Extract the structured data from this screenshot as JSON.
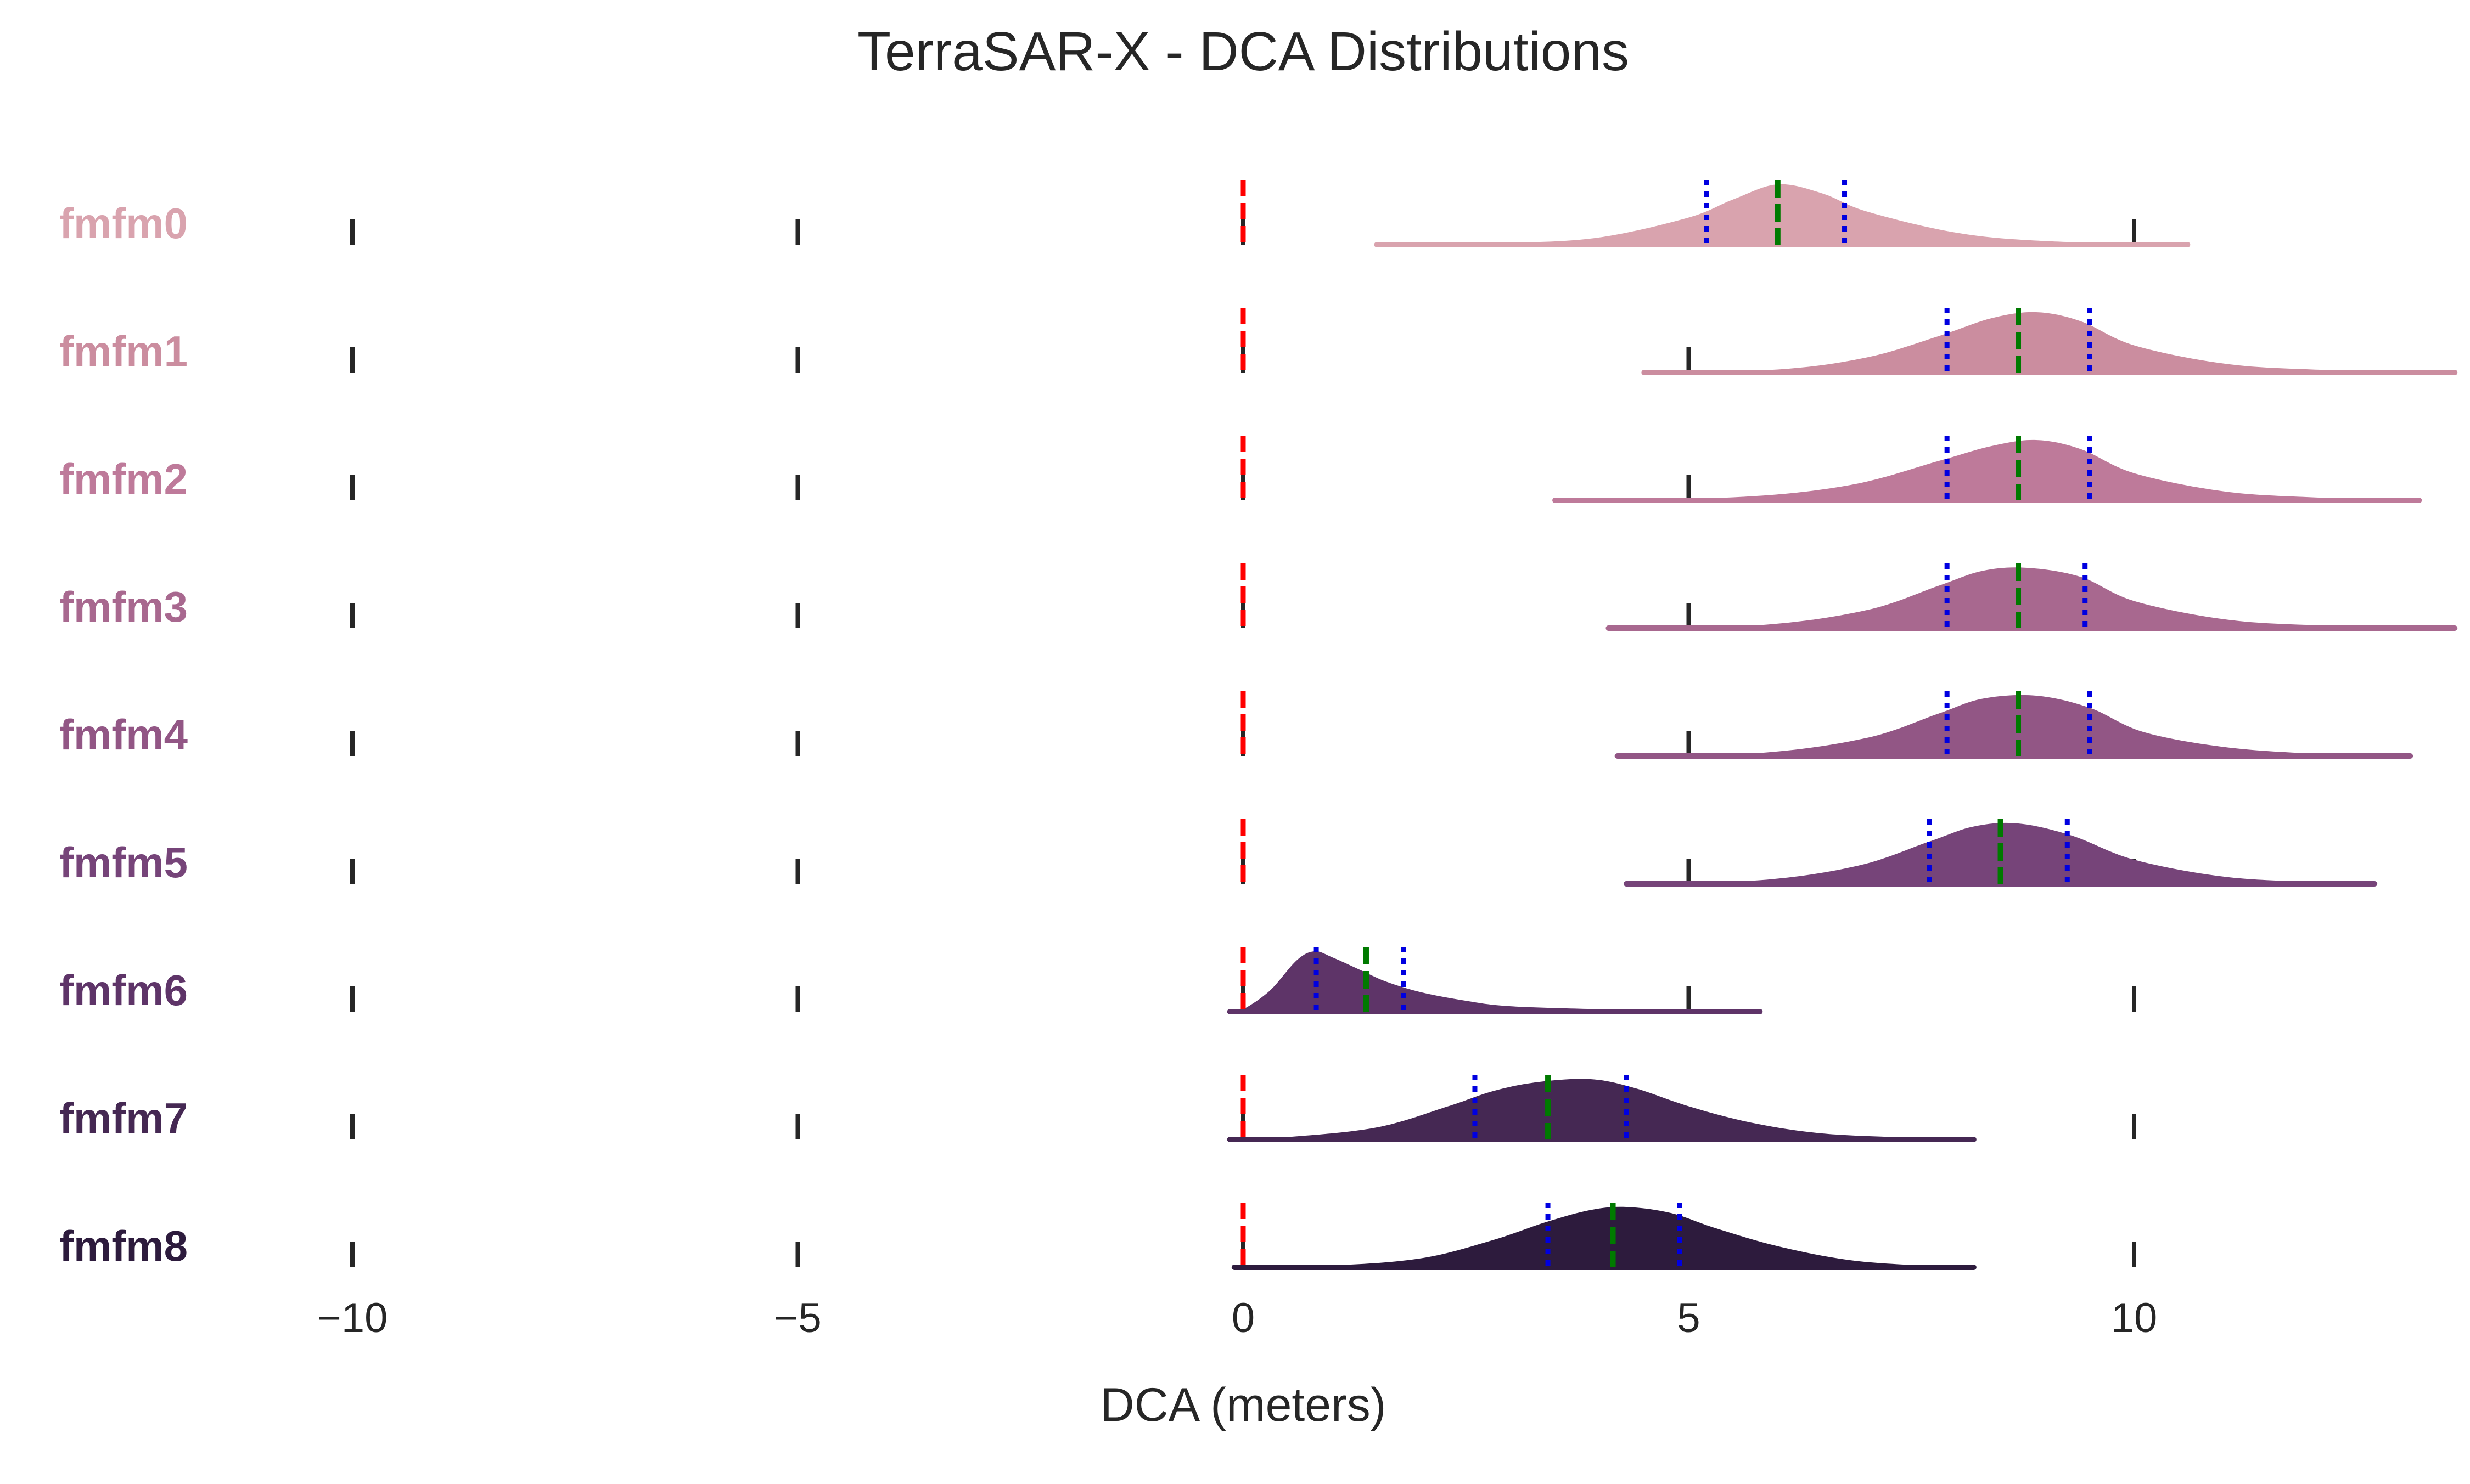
{
  "chart_data": {
    "type": "ridgeline",
    "title": "TerraSAR-X - DCA Distributions",
    "xlabel": "DCA (meters)",
    "xlim": [
      -10.5,
      13.6
    ],
    "xticks": [
      -10,
      -5,
      0,
      5,
      10
    ],
    "xtick_labels": [
      "−10",
      "−5",
      "0",
      "5",
      "10"
    ],
    "reference_line": {
      "value": 0,
      "color": "#ff0000",
      "style": "dashed"
    },
    "marker_colors": {
      "median": "#007a00",
      "quartile": "#0000e0"
    },
    "grid": false,
    "legend": "none",
    "series": [
      {
        "name": "fmfm0",
        "color": "#d9a3ae",
        "min": 1.5,
        "max": 10.6,
        "q1": 5.2,
        "median": 6.0,
        "q3": 6.75,
        "density": [
          [
            1.5,
            0.0
          ],
          [
            3.0,
            0.03
          ],
          [
            4.0,
            0.12
          ],
          [
            5.0,
            0.45
          ],
          [
            5.5,
            0.75
          ],
          [
            6.0,
            1.0
          ],
          [
            6.5,
            0.85
          ],
          [
            7.0,
            0.55
          ],
          [
            8.0,
            0.2
          ],
          [
            9.0,
            0.06
          ],
          [
            10.6,
            0.0
          ]
        ]
      },
      {
        "name": "fmfm1",
        "color": "#cb8d9f",
        "min": 4.5,
        "max": 13.6,
        "q1": 7.9,
        "median": 8.7,
        "q3": 9.5,
        "density": [
          [
            4.5,
            0.0
          ],
          [
            6.0,
            0.05
          ],
          [
            7.0,
            0.25
          ],
          [
            7.8,
            0.6
          ],
          [
            8.4,
            0.9
          ],
          [
            8.9,
            1.0
          ],
          [
            9.4,
            0.85
          ],
          [
            10.0,
            0.45
          ],
          [
            11.0,
            0.15
          ],
          [
            12.0,
            0.05
          ],
          [
            13.6,
            0.0
          ]
        ]
      },
      {
        "name": "fmfm2",
        "color": "#be7a9a",
        "min": 3.5,
        "max": 13.2,
        "q1": 7.9,
        "median": 8.7,
        "q3": 9.5,
        "density": [
          [
            3.5,
            0.0
          ],
          [
            5.5,
            0.05
          ],
          [
            6.8,
            0.25
          ],
          [
            7.8,
            0.65
          ],
          [
            8.4,
            0.9
          ],
          [
            8.9,
            1.0
          ],
          [
            9.4,
            0.85
          ],
          [
            10.0,
            0.45
          ],
          [
            11.0,
            0.15
          ],
          [
            12.0,
            0.05
          ],
          [
            13.2,
            0.0
          ]
        ]
      },
      {
        "name": "fmfm3",
        "color": "#a8688f",
        "min": 4.1,
        "max": 13.6,
        "q1": 7.9,
        "median": 8.7,
        "q3": 9.45,
        "density": [
          [
            4.1,
            0.0
          ],
          [
            5.8,
            0.05
          ],
          [
            7.0,
            0.3
          ],
          [
            7.8,
            0.7
          ],
          [
            8.3,
            0.95
          ],
          [
            8.8,
            1.0
          ],
          [
            9.4,
            0.85
          ],
          [
            10.0,
            0.45
          ],
          [
            11.0,
            0.15
          ],
          [
            12.0,
            0.05
          ],
          [
            13.6,
            0.0
          ]
        ]
      },
      {
        "name": "fmfm4",
        "color": "#925685",
        "min": 4.2,
        "max": 13.1,
        "q1": 7.9,
        "median": 8.7,
        "q3": 9.5,
        "density": [
          [
            4.2,
            0.0
          ],
          [
            5.8,
            0.05
          ],
          [
            7.0,
            0.3
          ],
          [
            7.8,
            0.7
          ],
          [
            8.3,
            0.95
          ],
          [
            8.9,
            1.0
          ],
          [
            9.5,
            0.8
          ],
          [
            10.1,
            0.4
          ],
          [
            11.0,
            0.15
          ],
          [
            12.0,
            0.04
          ],
          [
            13.1,
            0.0
          ]
        ]
      },
      {
        "name": "fmfm5",
        "color": "#764479",
        "min": 4.3,
        "max": 12.7,
        "q1": 7.7,
        "median": 8.5,
        "q3": 9.25,
        "density": [
          [
            4.3,
            0.0
          ],
          [
            5.8,
            0.06
          ],
          [
            6.9,
            0.3
          ],
          [
            7.7,
            0.7
          ],
          [
            8.2,
            0.95
          ],
          [
            8.7,
            1.0
          ],
          [
            9.3,
            0.8
          ],
          [
            10.0,
            0.4
          ],
          [
            11.0,
            0.12
          ],
          [
            12.0,
            0.03
          ],
          [
            12.7,
            0.0
          ]
        ]
      },
      {
        "name": "fmfm6",
        "color": "#5e3468",
        "min": -0.15,
        "max": 5.8,
        "q1": 0.82,
        "median": 1.38,
        "q3": 1.8,
        "density": [
          [
            -0.15,
            0.0
          ],
          [
            0.0,
            0.04
          ],
          [
            0.3,
            0.35
          ],
          [
            0.6,
            0.85
          ],
          [
            0.8,
            1.0
          ],
          [
            1.0,
            0.9
          ],
          [
            1.3,
            0.7
          ],
          [
            1.6,
            0.5
          ],
          [
            2.0,
            0.32
          ],
          [
            2.5,
            0.18
          ],
          [
            3.0,
            0.09
          ],
          [
            4.0,
            0.04
          ],
          [
            5.0,
            0.01
          ],
          [
            5.8,
            0.0
          ]
        ]
      },
      {
        "name": "fmfm7",
        "color": "#452853",
        "min": -0.15,
        "max": 8.2,
        "q1": 2.6,
        "median": 3.42,
        "q3": 4.3,
        "density": [
          [
            -0.15,
            0.0
          ],
          [
            0.5,
            0.04
          ],
          [
            1.5,
            0.2
          ],
          [
            2.3,
            0.55
          ],
          [
            2.8,
            0.8
          ],
          [
            3.3,
            0.95
          ],
          [
            3.9,
            1.0
          ],
          [
            4.4,
            0.85
          ],
          [
            5.0,
            0.55
          ],
          [
            5.7,
            0.28
          ],
          [
            6.5,
            0.1
          ],
          [
            7.5,
            0.03
          ],
          [
            8.2,
            0.0
          ]
        ]
      },
      {
        "name": "fmfm8",
        "color": "#2d1b3d",
        "min": -0.1,
        "max": 8.2,
        "q1": 3.42,
        "median": 4.15,
        "q3": 4.9,
        "density": [
          [
            -0.1,
            0.0
          ],
          [
            1.0,
            0.03
          ],
          [
            2.0,
            0.15
          ],
          [
            2.8,
            0.45
          ],
          [
            3.4,
            0.75
          ],
          [
            3.9,
            0.95
          ],
          [
            4.3,
            1.0
          ],
          [
            4.8,
            0.9
          ],
          [
            5.3,
            0.65
          ],
          [
            6.0,
            0.35
          ],
          [
            6.8,
            0.12
          ],
          [
            7.6,
            0.03
          ],
          [
            8.2,
            0.0
          ]
        ]
      }
    ]
  }
}
